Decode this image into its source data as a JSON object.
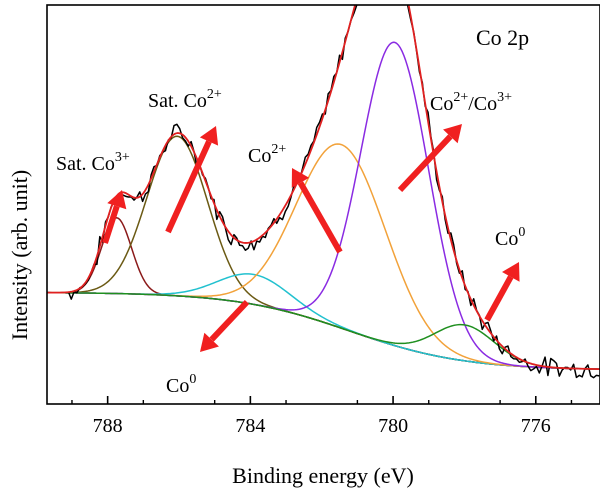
{
  "chart_data": {
    "type": "line",
    "title": "Co 2p",
    "xlabel": "Binding energy (eV)",
    "ylabel": "Intensity (arb. unit)",
    "xlim": [
      789.7,
      774.2
    ],
    "ylim": [
      0,
      1
    ],
    "x_reversed": true,
    "grid": false,
    "y_ticks_labels": false,
    "x_ticks": [
      788,
      784,
      780,
      776
    ],
    "x_tick_labels": [
      "788",
      "784",
      "780",
      "776"
    ],
    "annotations": [
      {
        "base": "Sat. Co",
        "sup": "3+"
      },
      {
        "base": "Sat. Co",
        "sup": "2+"
      },
      {
        "base": "Co",
        "sup": "2+"
      },
      {
        "base": "Co",
        "sup": "2+",
        "base2": "/Co",
        "sup2": "3+"
      },
      {
        "base": "Co",
        "sup": "0"
      },
      {
        "base": "Co",
        "sup": "0"
      }
    ],
    "background": {
      "left": 0.28,
      "right": 0.085,
      "center": 781.2,
      "width": 1.6
    },
    "components": [
      {
        "center": 787.75,
        "amplitude": 0.19,
        "sigma": 0.42,
        "color": "#8b1a1a"
      },
      {
        "center": 786.05,
        "amplitude": 0.4,
        "sigma": 0.85,
        "color": "#6b5a14"
      },
      {
        "center": 783.9,
        "amplitude": 0.075,
        "sigma": 1.0,
        "color": "#22c1cf"
      },
      {
        "center": 781.45,
        "amplitude": 0.46,
        "sigma": 1.25,
        "color": "#f2a23a"
      },
      {
        "center": 779.95,
        "amplitude": 0.76,
        "sigma": 0.95,
        "color": "#8a2be2"
      },
      {
        "center": 778.0,
        "amplitude": 0.09,
        "sigma": 0.85,
        "color": "#1f8f1f"
      }
    ],
    "baseline_color": "#2a3a8c",
    "envelope_color": "#e02020",
    "raw_color": "#000000"
  }
}
